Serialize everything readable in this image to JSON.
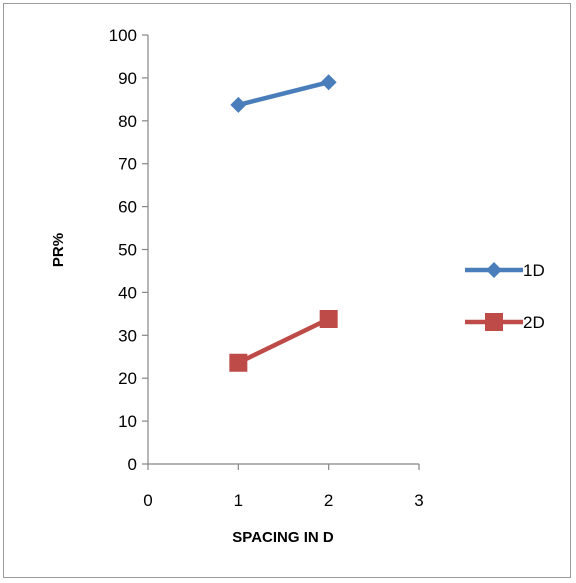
{
  "chart_data": {
    "type": "line",
    "xlabel": "SPACING  IN D",
    "ylabel": "PR%",
    "xlim": [
      0,
      3
    ],
    "ylim": [
      0,
      100
    ],
    "x_ticks": [
      0,
      1,
      2,
      3
    ],
    "y_ticks": [
      0,
      10,
      20,
      30,
      40,
      50,
      60,
      70,
      80,
      90,
      100
    ],
    "grid": false,
    "legend_position": "right",
    "series": [
      {
        "name": "1D",
        "x": [
          1,
          2
        ],
        "y": [
          83.7,
          89.0
        ],
        "color": "#4a7ebb",
        "marker": "diamond"
      },
      {
        "name": "2D",
        "x": [
          1,
          2
        ],
        "y": [
          23.6,
          33.8
        ],
        "color": "#be4b48",
        "marker": "square"
      }
    ]
  }
}
